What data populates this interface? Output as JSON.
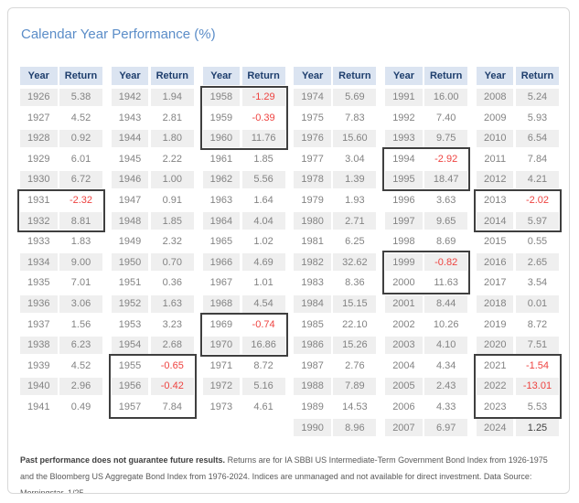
{
  "title": "Calendar Year Performance (%)",
  "table_headers": {
    "year": "Year",
    "return": "Return"
  },
  "emphasis_years": [
    "2024"
  ],
  "chart_data": {
    "type": "table",
    "title": "Calendar Year Performance (%)",
    "value_unit": "percent",
    "columns": [
      {
        "rows": [
          [
            "1926",
            "5.38"
          ],
          [
            "1927",
            "4.52"
          ],
          [
            "1928",
            "0.92"
          ],
          [
            "1929",
            "6.01"
          ],
          [
            "1930",
            "6.72"
          ],
          [
            "1931",
            "-2.32"
          ],
          [
            "1932",
            "8.81"
          ],
          [
            "1933",
            "1.83"
          ],
          [
            "1934",
            "9.00"
          ],
          [
            "1935",
            "7.01"
          ],
          [
            "1936",
            "3.06"
          ],
          [
            "1937",
            "1.56"
          ],
          [
            "1938",
            "6.23"
          ],
          [
            "1939",
            "4.52"
          ],
          [
            "1940",
            "2.96"
          ],
          [
            "1941",
            "0.49"
          ]
        ],
        "boxes": [
          {
            "start": 5,
            "len": 2
          }
        ]
      },
      {
        "rows": [
          [
            "1942",
            "1.94"
          ],
          [
            "1943",
            "2.81"
          ],
          [
            "1944",
            "1.80"
          ],
          [
            "1945",
            "2.22"
          ],
          [
            "1946",
            "1.00"
          ],
          [
            "1947",
            "0.91"
          ],
          [
            "1948",
            "1.85"
          ],
          [
            "1949",
            "2.32"
          ],
          [
            "1950",
            "0.70"
          ],
          [
            "1951",
            "0.36"
          ],
          [
            "1952",
            "1.63"
          ],
          [
            "1953",
            "3.23"
          ],
          [
            "1954",
            "2.68"
          ],
          [
            "1955",
            "-0.65"
          ],
          [
            "1956",
            "-0.42"
          ],
          [
            "1957",
            "7.84"
          ]
        ],
        "boxes": [
          {
            "start": 13,
            "len": 3
          }
        ]
      },
      {
        "rows": [
          [
            "1958",
            "-1.29"
          ],
          [
            "1959",
            "-0.39"
          ],
          [
            "1960",
            "11.76"
          ],
          [
            "1961",
            "1.85"
          ],
          [
            "1962",
            "5.56"
          ],
          [
            "1963",
            "1.64"
          ],
          [
            "1964",
            "4.04"
          ],
          [
            "1965",
            "1.02"
          ],
          [
            "1966",
            "4.69"
          ],
          [
            "1967",
            "1.01"
          ],
          [
            "1968",
            "4.54"
          ],
          [
            "1969",
            "-0.74"
          ],
          [
            "1970",
            "16.86"
          ],
          [
            "1971",
            "8.72"
          ],
          [
            "1972",
            "5.16"
          ],
          [
            "1973",
            "4.61"
          ]
        ],
        "boxes": [
          {
            "start": 0,
            "len": 3
          },
          {
            "start": 11,
            "len": 2
          }
        ]
      },
      {
        "rows": [
          [
            "1974",
            "5.69"
          ],
          [
            "1975",
            "7.83"
          ],
          [
            "1976",
            "15.60"
          ],
          [
            "1977",
            "3.04"
          ],
          [
            "1978",
            "1.39"
          ],
          [
            "1979",
            "1.93"
          ],
          [
            "1980",
            "2.71"
          ],
          [
            "1981",
            "6.25"
          ],
          [
            "1982",
            "32.62"
          ],
          [
            "1983",
            "8.36"
          ],
          [
            "1984",
            "15.15"
          ],
          [
            "1985",
            "22.10"
          ],
          [
            "1986",
            "15.26"
          ],
          [
            "1987",
            "2.76"
          ],
          [
            "1988",
            "7.89"
          ],
          [
            "1989",
            "14.53"
          ],
          [
            "1990",
            "8.96"
          ]
        ],
        "boxes": []
      },
      {
        "rows": [
          [
            "1991",
            "16.00"
          ],
          [
            "1992",
            "7.40"
          ],
          [
            "1993",
            "9.75"
          ],
          [
            "1994",
            "-2.92"
          ],
          [
            "1995",
            "18.47"
          ],
          [
            "1996",
            "3.63"
          ],
          [
            "1997",
            "9.65"
          ],
          [
            "1998",
            "8.69"
          ],
          [
            "1999",
            "-0.82"
          ],
          [
            "2000",
            "11.63"
          ],
          [
            "2001",
            "8.44"
          ],
          [
            "2002",
            "10.26"
          ],
          [
            "2003",
            "4.10"
          ],
          [
            "2004",
            "4.34"
          ],
          [
            "2005",
            "2.43"
          ],
          [
            "2006",
            "4.33"
          ],
          [
            "2007",
            "6.97"
          ]
        ],
        "boxes": [
          {
            "start": 3,
            "len": 2
          },
          {
            "start": 8,
            "len": 2
          }
        ]
      },
      {
        "rows": [
          [
            "2008",
            "5.24"
          ],
          [
            "2009",
            "5.93"
          ],
          [
            "2010",
            "6.54"
          ],
          [
            "2011",
            "7.84"
          ],
          [
            "2012",
            "4.21"
          ],
          [
            "2013",
            "-2.02"
          ],
          [
            "2014",
            "5.97"
          ],
          [
            "2015",
            "0.55"
          ],
          [
            "2016",
            "2.65"
          ],
          [
            "2017",
            "3.54"
          ],
          [
            "2018",
            "0.01"
          ],
          [
            "2019",
            "8.72"
          ],
          [
            "2020",
            "7.51"
          ],
          [
            "2021",
            "-1.54"
          ],
          [
            "2022",
            "-13.01"
          ],
          [
            "2023",
            "5.53"
          ],
          [
            "2024",
            "1.25"
          ]
        ],
        "boxes": [
          {
            "start": 5,
            "len": 2
          },
          {
            "start": 13,
            "len": 3
          }
        ]
      }
    ]
  },
  "footnote": {
    "bold": "Past performance does not guarantee future results.",
    "text": " Returns are for IA SBBI US Intermediate-Term Government Bond Index from 1926-1975 and the Bloomberg US Aggregate Bond Index from 1976-2024. Indices are unmanaged and not available for direct investment. Data Source: Morningstar, 1/25."
  },
  "colors": {
    "title_blue": "#5b8dc8",
    "header_bg": "#dbe4f1",
    "header_text": "#1e3e6d",
    "row_shade": "#efefef",
    "value_gray": "#838383",
    "negative_red": "#ee4340",
    "emphasis_dark": "#3f3f3f",
    "box_border": "#3f3f3f",
    "card_border": "#d8d8d8",
    "footnote_gray": "#595959"
  }
}
